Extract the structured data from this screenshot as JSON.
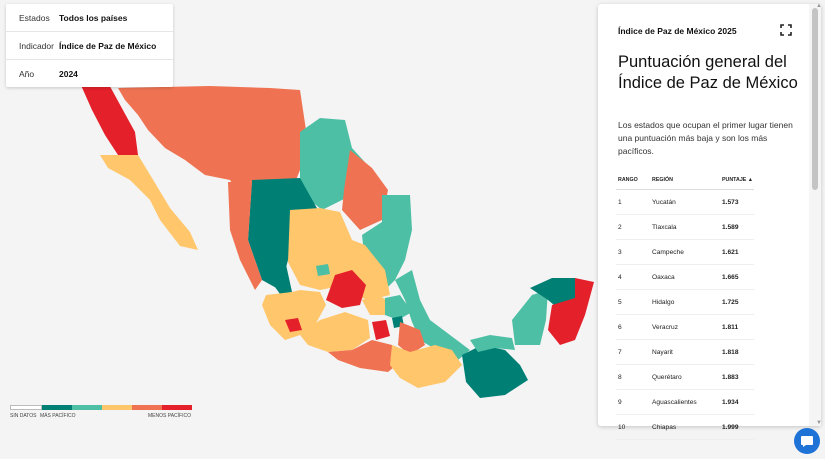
{
  "filters": [
    {
      "label": "Estados",
      "value": "Todos los países"
    },
    {
      "label": "Indicador",
      "value": "Índice de Paz de México"
    },
    {
      "label": "Año",
      "value": "2024"
    }
  ],
  "legend": {
    "no_data": "SIN DATOS",
    "most_peaceful": "MÁS PACÍFICO",
    "least_peaceful": "MENOS PACÍFICO",
    "colors": [
      "#007f75",
      "#4dbfa5",
      "#ffc66b",
      "#ef7352",
      "#e4202a"
    ]
  },
  "panel": {
    "header": "Índice de Paz de México 2025",
    "expand_icon": "expand-icon",
    "title": "Puntuación general del Índice de Paz de México",
    "description": "Los estados que ocupan el primer lugar tienen una puntuación más baja y son los más pacíficos.",
    "columns": [
      "RANGO",
      "REGIÓN",
      "PUNTAJE ▲"
    ],
    "rows": [
      {
        "rank": "1",
        "region": "Yucatán",
        "score": "1.573"
      },
      {
        "rank": "2",
        "region": "Tlaxcala",
        "score": "1.589"
      },
      {
        "rank": "3",
        "region": "Campeche",
        "score": "1.621"
      },
      {
        "rank": "4",
        "region": "Oaxaca",
        "score": "1.665"
      },
      {
        "rank": "5",
        "region": "Hidalgo",
        "score": "1.725"
      },
      {
        "rank": "6",
        "region": "Veracruz",
        "score": "1.811"
      },
      {
        "rank": "7",
        "region": "Nayarit",
        "score": "1.818"
      },
      {
        "rank": "8",
        "region": "Querétaro",
        "score": "1.883"
      },
      {
        "rank": "9",
        "region": "Aguascalientes",
        "score": "1.934"
      },
      {
        "rank": "10",
        "region": "Chiapas",
        "score": "1.999"
      }
    ]
  },
  "chat_icon": "chat-icon"
}
